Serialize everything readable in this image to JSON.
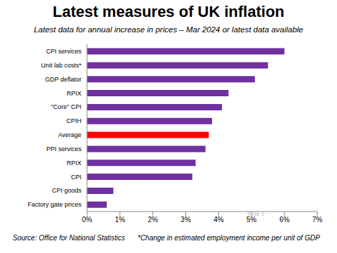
{
  "chart_data": {
    "type": "bar",
    "orientation": "horizontal",
    "title": "Latest measures of UK inflation",
    "subtitle": "Latest data for annual increase  in prices – Mar 2024 or latest data available",
    "categories": [
      "CPI services",
      "Unit lab costs*",
      "GDP deflator",
      "RPIX",
      "\"Core\" CPI",
      "CPIH",
      "Average",
      "PPI services",
      "RPIX",
      "CPI",
      "CPI goods",
      "Factory gate prices"
    ],
    "values": [
      6.0,
      5.5,
      5.1,
      4.3,
      4.1,
      3.8,
      3.7,
      3.6,
      3.3,
      3.2,
      0.8,
      0.6
    ],
    "colors": [
      "#7030a0",
      "#7030a0",
      "#7030a0",
      "#7030a0",
      "#7030a0",
      "#7030a0",
      "#ff0000",
      "#7030a0",
      "#7030a0",
      "#7030a0",
      "#7030a0",
      "#7030a0"
    ],
    "xlim": [
      0,
      7
    ],
    "xticks": [
      {
        "value": 0,
        "label": "0%"
      },
      {
        "value": 1,
        "label": "1%"
      },
      {
        "value": 2,
        "label": "2%"
      },
      {
        "value": 3,
        "label": "3%"
      },
      {
        "value": 4,
        "label": "4%"
      },
      {
        "value": 5,
        "label": "5%"
      },
      {
        "value": 6,
        "label": "6%"
      },
      {
        "value": 7,
        "label": "7%"
      }
    ],
    "grid": false,
    "annotations": [
      "Source:  Office for National Statistics",
      "*Change in estimated employment income per unit of GDP",
      "Slide 1"
    ]
  }
}
